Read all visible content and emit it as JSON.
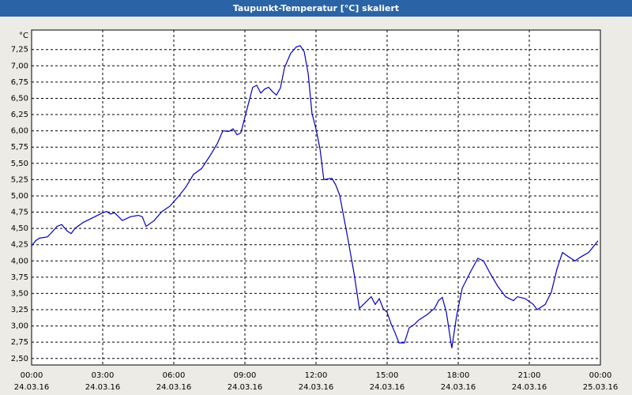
{
  "chart_data": {
    "type": "line",
    "title": "Taupunkt-Temperatur [°C] skaliert",
    "y_unit": "°C",
    "xlim": [
      0,
      24
    ],
    "ylim": [
      2.4,
      7.55
    ],
    "xticks": [
      {
        "value": 0,
        "label": "00:00"
      },
      {
        "value": 3,
        "label": "03:00"
      },
      {
        "value": 6,
        "label": "06:00"
      },
      {
        "value": 9,
        "label": "09:00"
      },
      {
        "value": 12,
        "label": "12:00"
      },
      {
        "value": 15,
        "label": "15:00"
      },
      {
        "value": 18,
        "label": "18:00"
      },
      {
        "value": 21,
        "label": "21:00"
      },
      {
        "value": 24,
        "label": "00:00"
      }
    ],
    "xtick_dates": [
      "24.03.16",
      "24.03.16",
      "24.03.16",
      "24.03.16",
      "24.03.16",
      "24.03.16",
      "24.03.16",
      "24.03.16",
      "25.03.16"
    ],
    "yticks": [
      {
        "value": 2.5,
        "label": "2,50"
      },
      {
        "value": 2.75,
        "label": "2,75"
      },
      {
        "value": 3,
        "label": "3,00"
      },
      {
        "value": 3.25,
        "label": "3,25"
      },
      {
        "value": 3.5,
        "label": "3,50"
      },
      {
        "value": 3.75,
        "label": "3,75"
      },
      {
        "value": 4,
        "label": "4,00"
      },
      {
        "value": 4.25,
        "label": "4,25"
      },
      {
        "value": 4.5,
        "label": "4,50"
      },
      {
        "value": 4.75,
        "label": "4,75"
      },
      {
        "value": 5,
        "label": "5,00"
      },
      {
        "value": 5.25,
        "label": "5,25"
      },
      {
        "value": 5.5,
        "label": "5,50"
      },
      {
        "value": 5.75,
        "label": "5,75"
      },
      {
        "value": 6,
        "label": "6,00"
      },
      {
        "value": 6.25,
        "label": "6,25"
      },
      {
        "value": 6.5,
        "label": "6,50"
      },
      {
        "value": 6.75,
        "label": "6,75"
      },
      {
        "value": 7,
        "label": "7,00"
      },
      {
        "value": 7.25,
        "label": "7,25"
      }
    ],
    "grid": true,
    "color": "#0000c0",
    "x": [
      0,
      0.17,
      0.33,
      0.67,
      0.83,
      1.07,
      1.27,
      1.5,
      1.67,
      1.83,
      2.17,
      2.5,
      2.67,
      2.83,
      3,
      3.17,
      3.33,
      3.5,
      3.67,
      3.83,
      4.17,
      4.5,
      4.67,
      4.83,
      5.17,
      5.5,
      5.83,
      6.17,
      6.5,
      6.83,
      7.17,
      7.5,
      7.83,
      8.07,
      8.33,
      8.5,
      8.67,
      8.83,
      9,
      9.33,
      9.5,
      9.67,
      9.83,
      10,
      10.17,
      10.33,
      10.5,
      10.67,
      10.93,
      11.17,
      11.33,
      11.5,
      11.67,
      11.83,
      12,
      12.17,
      12.33,
      12.67,
      12.83,
      13,
      13.33,
      13.6,
      13.83,
      14,
      14.33,
      14.5,
      14.67,
      14.83,
      15,
      15.17,
      15.33,
      15.5,
      15.73,
      15.93,
      16.17,
      16.33,
      16.67,
      17,
      17.17,
      17.33,
      17.5,
      17.73,
      17.93,
      18.17,
      18.5,
      18.83,
      19.07,
      19.33,
      19.67,
      20,
      20.33,
      20.5,
      20.83,
      21.17,
      21.33,
      21.67,
      21.93,
      22.17,
      22.4,
      22.67,
      22.93,
      23.17,
      23.5,
      23.73,
      23.9
    ],
    "values": [
      4.23,
      4.31,
      4.35,
      4.37,
      4.43,
      4.53,
      4.56,
      4.46,
      4.42,
      4.5,
      4.59,
      4.65,
      4.68,
      4.71,
      4.74,
      4.76,
      4.72,
      4.74,
      4.68,
      4.62,
      4.68,
      4.7,
      4.68,
      4.53,
      4.62,
      4.76,
      4.84,
      4.98,
      5.13,
      5.33,
      5.42,
      5.6,
      5.8,
      6.0,
      5.99,
      6.03,
      5.94,
      5.97,
      6.21,
      6.67,
      6.7,
      6.58,
      6.64,
      6.67,
      6.6,
      6.55,
      6.66,
      6.97,
      7.19,
      7.29,
      7.31,
      7.22,
      6.88,
      6.27,
      6.03,
      5.72,
      5.25,
      5.27,
      5.17,
      5.01,
      4.37,
      3.82,
      3.27,
      3.33,
      3.45,
      3.33,
      3.42,
      3.27,
      3.21,
      3.03,
      2.9,
      2.74,
      2.74,
      2.97,
      3.03,
      3.09,
      3.17,
      3.27,
      3.39,
      3.44,
      3.21,
      2.66,
      3.15,
      3.58,
      3.82,
      4.04,
      4.0,
      3.82,
      3.61,
      3.45,
      3.39,
      3.45,
      3.42,
      3.33,
      3.25,
      3.33,
      3.52,
      3.88,
      4.13,
      4.06,
      4.0,
      4.06,
      4.13,
      4.23,
      4.31
    ]
  }
}
